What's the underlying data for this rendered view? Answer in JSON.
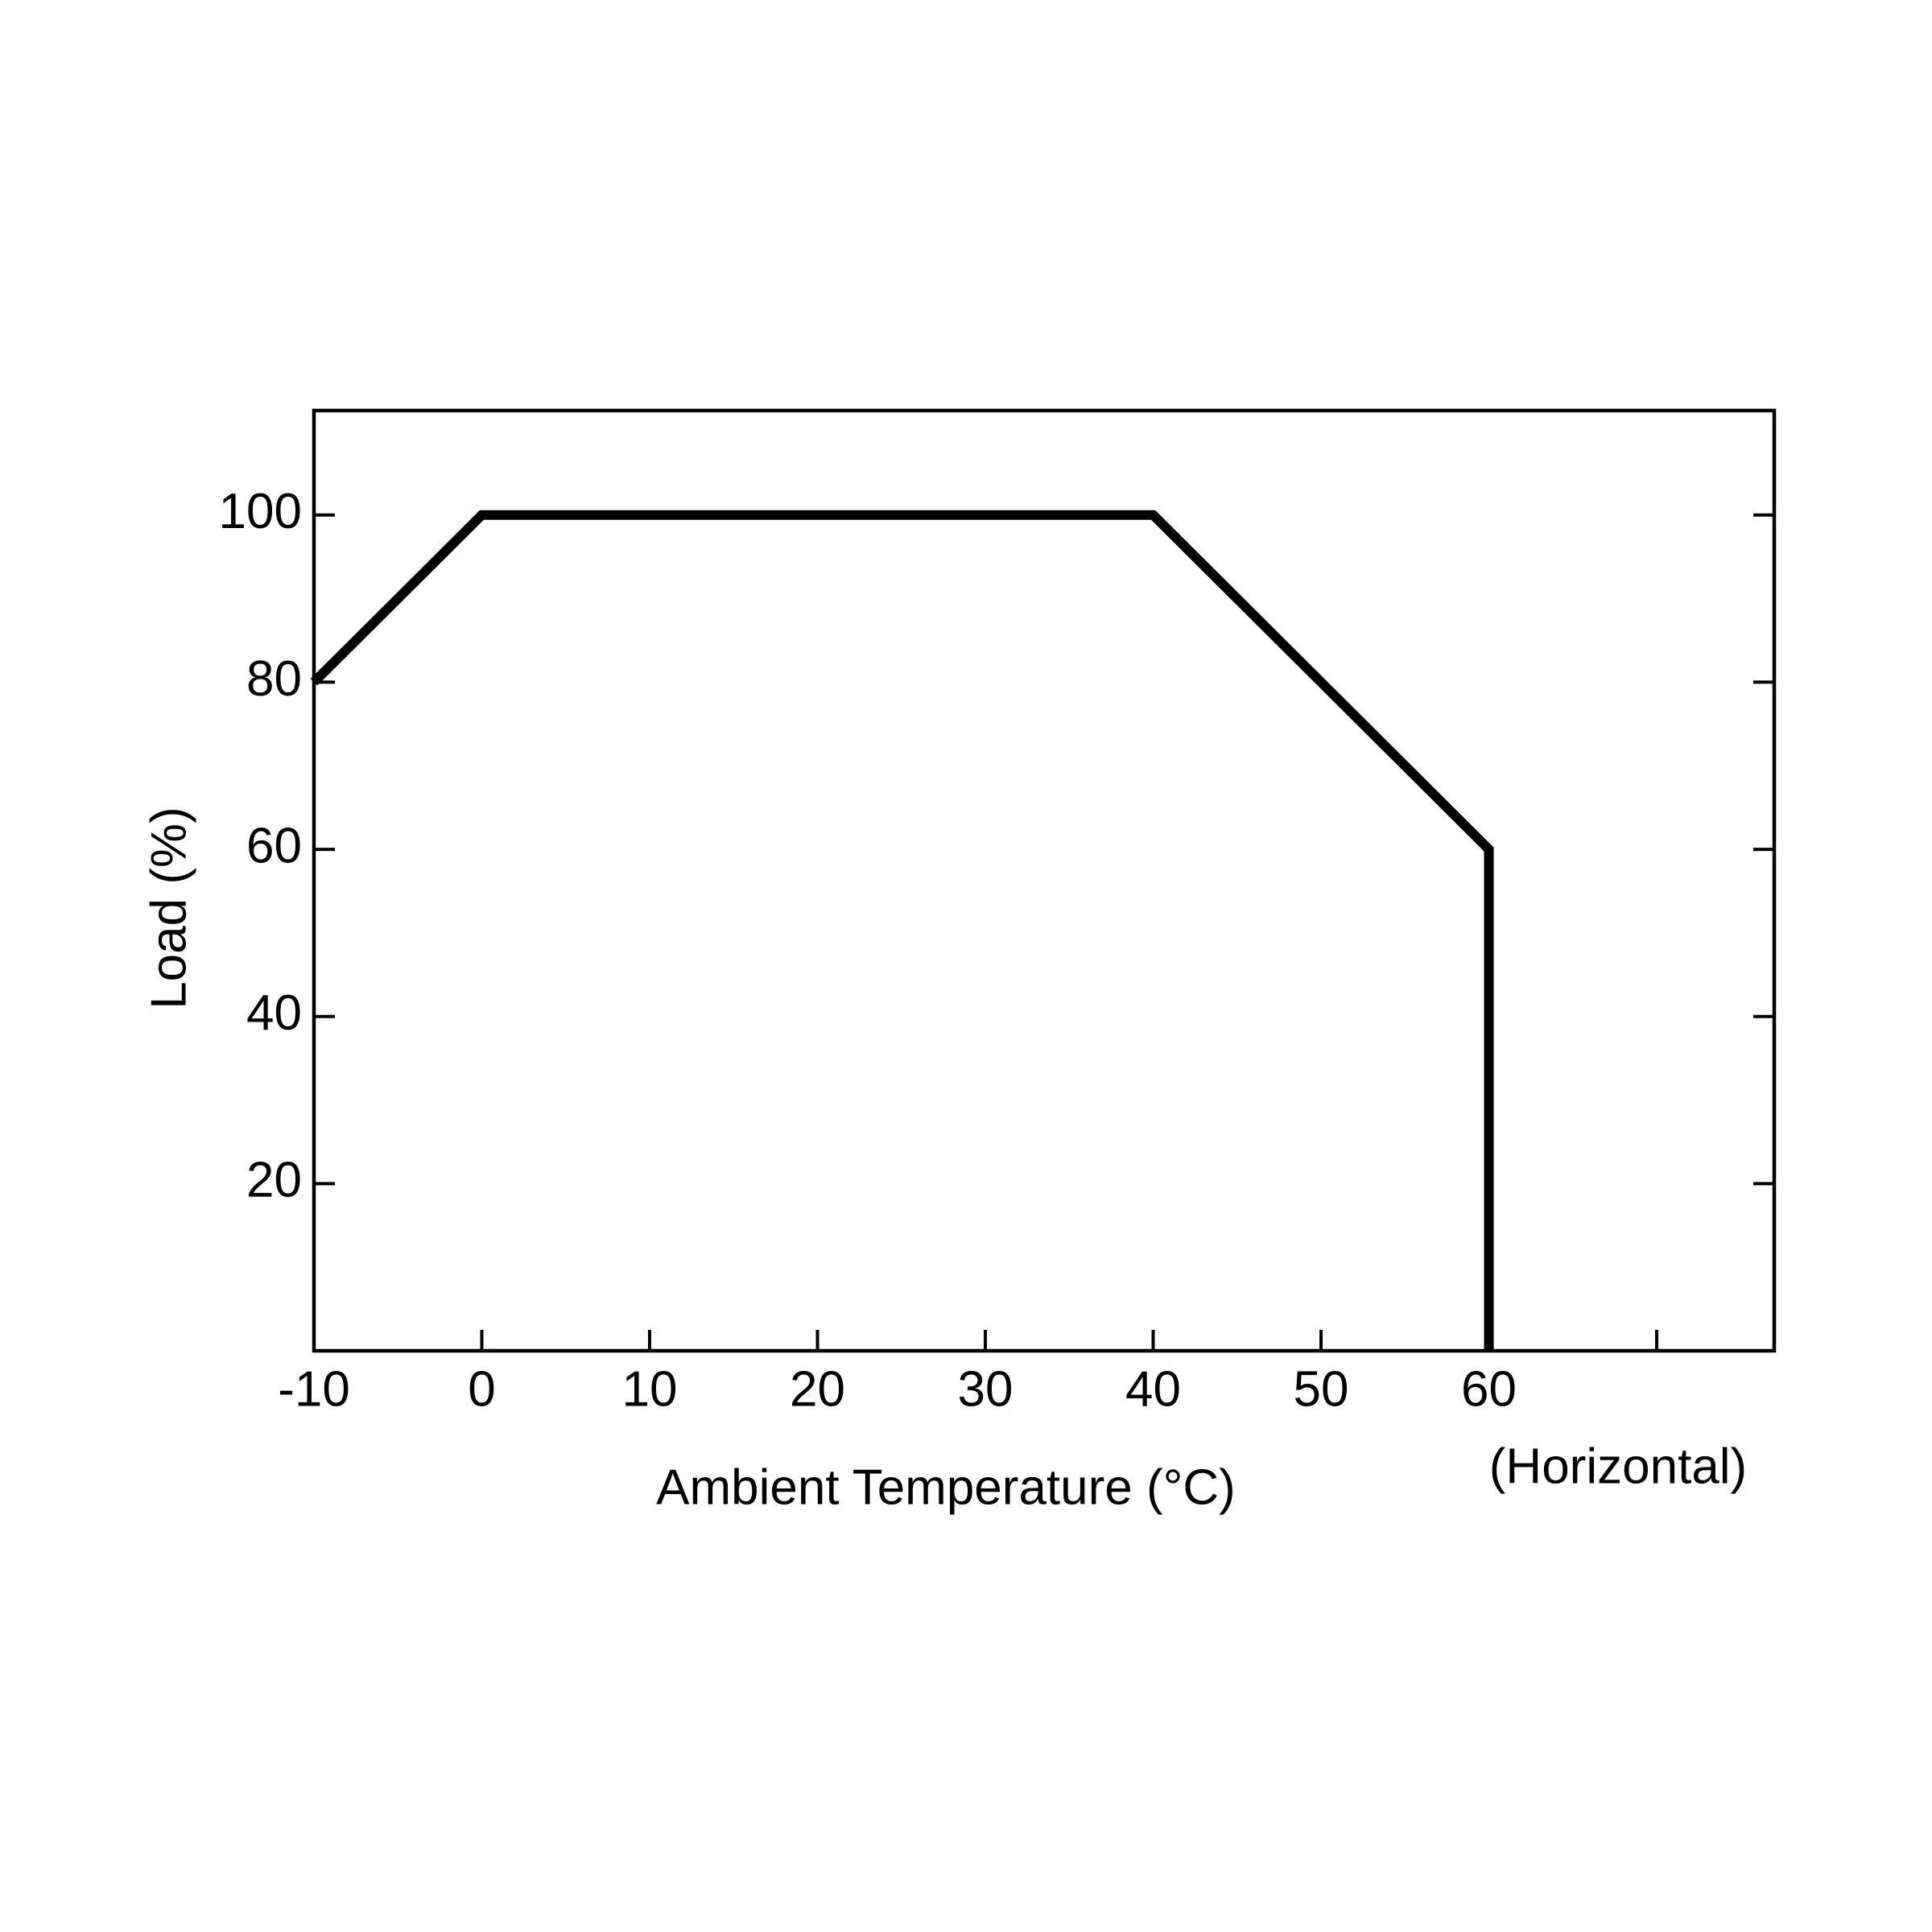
{
  "chart_data": {
    "type": "line",
    "xlabel": "Ambient Temperature (°C)",
    "ylabel": "Load (%)",
    "annotation": "(Horizontal)",
    "x": [
      -10,
      0,
      40,
      60,
      60
    ],
    "series": [
      {
        "color": "#000000",
        "values": [
          80,
          100,
          100,
          60,
          0
        ]
      }
    ],
    "xlim": [
      -10,
      77
    ],
    "ylim": [
      0,
      112.5
    ],
    "xticks": [
      -10,
      0,
      10,
      20,
      30,
      40,
      50,
      60,
      {
        "value": 70,
        "label": null
      }
    ],
    "yticks": [
      20,
      40,
      60,
      80,
      100
    ],
    "grid": false
  }
}
